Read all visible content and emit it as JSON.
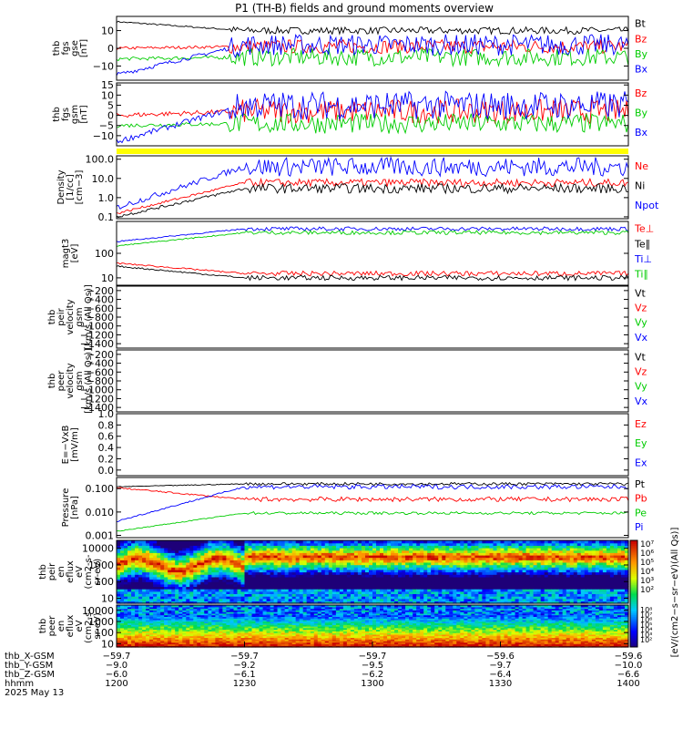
{
  "title": "P1 (TH-B) fields and ground moments overview",
  "colors": {
    "black": "#000000",
    "red": "#ff0000",
    "green": "#00cc00",
    "blue": "#0000ff",
    "yellow": "#ffff00"
  },
  "chart_data": [
    {
      "type": "line",
      "ylabel": [
        "thb",
        "fgs",
        "gse",
        "[nT]"
      ],
      "yticks": [
        "10",
        "0",
        "−10"
      ],
      "ylim": [
        -18,
        18
      ],
      "tickvals": [
        10,
        0,
        -10
      ],
      "legend": [
        {
          "name": "Bt",
          "color": "black"
        },
        {
          "name": "Bz",
          "color": "red"
        },
        {
          "name": "By",
          "color": "green"
        },
        {
          "name": "Bx",
          "color": "blue"
        }
      ],
      "series": [
        {
          "name": "Bt",
          "color": "black",
          "early": 15,
          "late": 10,
          "amp": 2
        },
        {
          "name": "Bz",
          "color": "red",
          "early": 0,
          "late": 1,
          "amp": 4
        },
        {
          "name": "By",
          "color": "green",
          "early": -6,
          "late": -5,
          "amp": 5
        },
        {
          "name": "Bx",
          "color": "blue",
          "early": -15,
          "late": 2,
          "amp": 6
        }
      ]
    },
    {
      "type": "line",
      "ylabel": [
        "thb",
        "fgs",
        "gsm",
        "[nT]"
      ],
      "yticks": [
        "15",
        "10",
        "5",
        "0",
        "−5",
        "−10"
      ],
      "ylim": [
        -15,
        16
      ],
      "tickvals": [
        15,
        10,
        5,
        0,
        -5,
        -10
      ],
      "legend": [
        {
          "name": "Bz",
          "color": "red"
        },
        {
          "name": "By",
          "color": "green"
        },
        {
          "name": "Bx",
          "color": "blue"
        }
      ],
      "series": [
        {
          "name": "Bz",
          "color": "red",
          "early": 0,
          "late": 2,
          "amp": 6
        },
        {
          "name": "By",
          "color": "green",
          "early": -5,
          "late": -4,
          "amp": 5
        },
        {
          "name": "Bx",
          "color": "blue",
          "early": -13,
          "late": 5,
          "amp": 7
        }
      ]
    },
    {
      "type": "line",
      "log": true,
      "ylabel": [
        "Density",
        "[1/cc]",
        "[cm−3]"
      ],
      "yticks": [
        "100.0",
        "10.0",
        "1.0",
        "0.1"
      ],
      "ylim": [
        0.08,
        150
      ],
      "tickvals": [
        100,
        10,
        1,
        0.1
      ],
      "legend": [
        {
          "name": "Ne",
          "color": "red"
        },
        {
          "name": "Ni",
          "color": "black"
        },
        {
          "name": "Npot",
          "color": "blue"
        }
      ],
      "series": [
        {
          "name": "Npot",
          "color": "blue",
          "early": 0.3,
          "late": 40,
          "amp": 0.5
        },
        {
          "name": "Ne",
          "color": "red",
          "early": 0.15,
          "late": 6,
          "amp": 0.2
        },
        {
          "name": "Ni",
          "color": "black",
          "early": 0.1,
          "late": 3,
          "amp": 0.25
        }
      ]
    },
    {
      "type": "line",
      "log": true,
      "ylabel": [
        "magt3",
        "[eV]"
      ],
      "yticks": [
        "100",
        "10"
      ],
      "ylim": [
        5,
        2000
      ],
      "tickvals": [
        100,
        10
      ],
      "legend": [
        {
          "name": "Te⊥",
          "color": "red"
        },
        {
          "name": "Te∥",
          "color": "black"
        },
        {
          "name": "Ti⊥",
          "color": "blue"
        },
        {
          "name": "Ti∥",
          "color": "green"
        }
      ],
      "series": [
        {
          "name": "Ti⊥",
          "color": "blue",
          "early": 300,
          "late": 1000,
          "amp": 0.08
        },
        {
          "name": "Ti∥",
          "color": "green",
          "early": 200,
          "late": 700,
          "amp": 0.08
        },
        {
          "name": "Te⊥",
          "color": "red",
          "early": 40,
          "late": 15,
          "amp": 0.1
        },
        {
          "name": "Te∥",
          "color": "black",
          "early": 30,
          "late": 10,
          "amp": 0.1
        }
      ]
    },
    {
      "type": "line",
      "ylabel": [
        "thb",
        "peir",
        "velocity",
        "gsm",
        "[km/s (All Qs)]"
      ],
      "yticks": [
        "−200",
        "−400",
        "−600",
        "−800",
        "−1000",
        "−1200",
        "−1400"
      ],
      "ylim": [
        -1500,
        -100
      ],
      "tickvals": [
        -200,
        -400,
        -600,
        -800,
        -1000,
        -1200,
        -1400
      ],
      "legend": [
        {
          "name": "Vt",
          "color": "black"
        },
        {
          "name": "Vz",
          "color": "red"
        },
        {
          "name": "Vy",
          "color": "green"
        },
        {
          "name": "Vx",
          "color": "blue"
        }
      ],
      "series": []
    },
    {
      "type": "line",
      "ylabel": [
        "thb",
        "peer",
        "velocity",
        "gsm",
        "[km/s (All Qs)]"
      ],
      "yticks": [
        "−200",
        "−400",
        "−600",
        "−800",
        "−1000",
        "−1200",
        "−1400"
      ],
      "ylim": [
        -1500,
        -100
      ],
      "tickvals": [
        -200,
        -400,
        -600,
        -800,
        -1000,
        -1200,
        -1400
      ],
      "legend": [
        {
          "name": "Vt",
          "color": "black"
        },
        {
          "name": "Vz",
          "color": "red"
        },
        {
          "name": "Vy",
          "color": "green"
        },
        {
          "name": "Vx",
          "color": "blue"
        }
      ],
      "series": []
    },
    {
      "type": "line",
      "ylabel": [
        "E=−VxB",
        "[mV/m]"
      ],
      "yticks": [
        "1.0",
        "0.8",
        "0.6",
        "0.4",
        "0.2",
        "0.0"
      ],
      "ylim": [
        -0.1,
        1.0
      ],
      "tickvals": [
        1.0,
        0.8,
        0.6,
        0.4,
        0.2,
        0.0
      ],
      "legend": [
        {
          "name": "Ez",
          "color": "red"
        },
        {
          "name": "Ey",
          "color": "green"
        },
        {
          "name": "Ex",
          "color": "blue"
        }
      ],
      "series": []
    },
    {
      "type": "line",
      "log": true,
      "ylabel": [
        "Pressure",
        "[nPa]"
      ],
      "yticks": [
        "0.100",
        "0.010",
        "0.001"
      ],
      "ylim": [
        0.0008,
        0.3
      ],
      "tickvals": [
        0.1,
        0.01,
        0.001
      ],
      "legend": [
        {
          "name": "Pt",
          "color": "black"
        },
        {
          "name": "Pb",
          "color": "red"
        },
        {
          "name": "Pe",
          "color": "green"
        },
        {
          "name": "Pi",
          "color": "blue"
        }
      ],
      "series": [
        {
          "name": "Pt",
          "color": "black",
          "early": 0.12,
          "late": 0.16,
          "amp": 0.06
        },
        {
          "name": "Pb",
          "color": "red",
          "early": 0.11,
          "late": 0.035,
          "amp": 0.1
        },
        {
          "name": "Pe",
          "color": "green",
          "early": 0.0015,
          "late": 0.009,
          "amp": 0.06
        },
        {
          "name": "Pi",
          "color": "blue",
          "early": 0.004,
          "late": 0.12,
          "amp": 0.1
        }
      ]
    },
    {
      "type": "heatmap",
      "ylabel": [
        "thb",
        "peir",
        "en",
        "eflux",
        "eV",
        "(cm2-s-",
        "sr-eV)"
      ],
      "yticks": [
        "10000",
        "1000",
        "100",
        "10"
      ],
      "ylim": [
        5,
        30000
      ],
      "tickvals": [
        10000,
        1000,
        100,
        10
      ],
      "variant": "ion"
    },
    {
      "type": "heatmap",
      "ylabel": [
        "thb",
        "peer",
        "en",
        "eflux",
        "eV",
        "(cm2-s-",
        "sr-eV)"
      ],
      "yticks": [
        "10000",
        "1000",
        "100",
        "10"
      ],
      "ylim": [
        5,
        30000
      ],
      "tickvals": [
        10000,
        1000,
        100,
        10
      ],
      "variant": "electron"
    }
  ],
  "colorbar": {
    "ticks": [
      "10⁷",
      "10⁶",
      "10⁵",
      "10⁴",
      "10³",
      "10²"
    ],
    "ticks2": [
      "10⁸",
      "10⁷",
      "10⁶",
      "10⁵",
      "10⁴",
      "10³",
      "10²"
    ],
    "label": "[eV/(cm2−s−sr−eV)(All Qs)]"
  },
  "xaxis": {
    "rows": [
      {
        "label": "thb_X-GSM",
        "values": [
          "−59.7",
          "−59.7",
          "−59.7",
          "−59.6",
          "−59.6"
        ]
      },
      {
        "label": "thb_Y-GSM",
        "values": [
          "−9.0",
          "−9.2",
          "−9.5",
          "−9.7",
          "−10.0"
        ]
      },
      {
        "label": "thb_Z-GSM",
        "values": [
          "−6.0",
          "−6.1",
          "−6.2",
          "−6.4",
          "−6.6"
        ]
      },
      {
        "label": "hhmm",
        "values": [
          "1200",
          "1230",
          "1300",
          "1330",
          "1400"
        ]
      }
    ],
    "date": "2025 May 13"
  }
}
